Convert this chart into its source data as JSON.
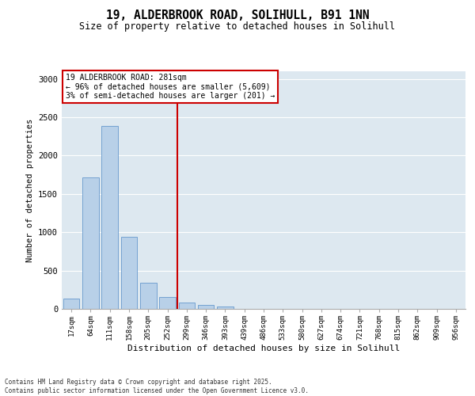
{
  "title_line1": "19, ALDERBROOK ROAD, SOLIHULL, B91 1NN",
  "title_line2": "Size of property relative to detached houses in Solihull",
  "xlabel": "Distribution of detached houses by size in Solihull",
  "ylabel": "Number of detached properties",
  "categories": [
    "17sqm",
    "64sqm",
    "111sqm",
    "158sqm",
    "205sqm",
    "252sqm",
    "299sqm",
    "346sqm",
    "393sqm",
    "439sqm",
    "486sqm",
    "533sqm",
    "580sqm",
    "627sqm",
    "674sqm",
    "721sqm",
    "768sqm",
    "815sqm",
    "862sqm",
    "909sqm",
    "956sqm"
  ],
  "values": [
    130,
    1720,
    2390,
    940,
    340,
    160,
    80,
    50,
    35,
    0,
    0,
    0,
    0,
    0,
    0,
    0,
    0,
    0,
    0,
    0,
    0
  ],
  "bar_color": "#b8d0e8",
  "bar_edge_color": "#6699cc",
  "vline_x": 5.5,
  "vline_color": "#cc0000",
  "annotation_title": "19 ALDERBROOK ROAD: 281sqm",
  "annotation_line2": "← 96% of detached houses are smaller (5,609)",
  "annotation_line3": "3% of semi-detached houses are larger (201) →",
  "annotation_box_color": "#ffffff",
  "annotation_box_edge": "#cc0000",
  "ylim": [
    0,
    3100
  ],
  "yticks": [
    0,
    500,
    1000,
    1500,
    2000,
    2500,
    3000
  ],
  "background_color": "#dde8f0",
  "grid_color": "#ffffff",
  "footnote_line1": "Contains HM Land Registry data © Crown copyright and database right 2025.",
  "footnote_line2": "Contains public sector information licensed under the Open Government Licence v3.0."
}
